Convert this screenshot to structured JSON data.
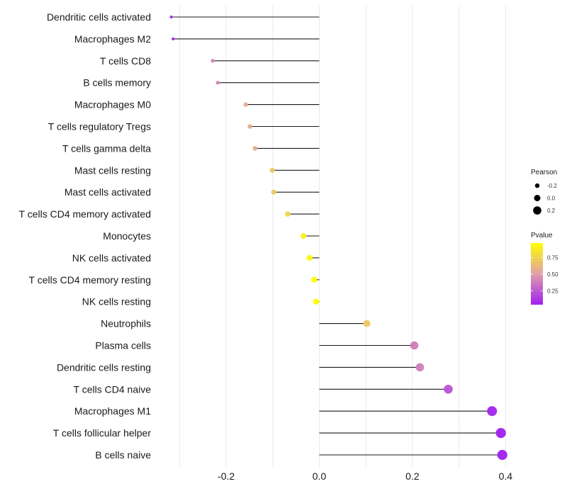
{
  "chart_data": {
    "type": "lollipop",
    "title": "",
    "xlabel": "",
    "ylabel": "",
    "xlim": [
      -0.33,
      0.41
    ],
    "x_ticks": [
      -0.2,
      0.0,
      0.2,
      0.4
    ],
    "x_tick_labels": [
      "-0.2",
      "0.0",
      "0.2",
      "0.4"
    ],
    "grid": true,
    "categories": [
      "Dendritic cells activated",
      "Macrophages M2",
      "T cells CD8",
      "B cells memory",
      "Macrophages M0",
      "T cells regulatory  Tregs ",
      "T cells gamma delta",
      "Mast cells resting",
      "Mast cells activated",
      "T cells CD4 memory activated",
      "Monocytes",
      "NK cells activated",
      "T cells CD4 memory resting",
      "NK cells resting",
      "Neutrophils",
      "Plasma cells",
      "Dendritic cells resting",
      "T cells CD4 naive",
      "Macrophages M1",
      "T cells follicular helper",
      "B cells naive"
    ],
    "pearson": [
      -0.318,
      -0.314,
      -0.229,
      -0.218,
      -0.158,
      -0.149,
      -0.138,
      -0.101,
      -0.098,
      -0.068,
      -0.034,
      -0.021,
      -0.011,
      -0.007,
      0.102,
      0.204,
      0.216,
      0.277,
      0.371,
      0.39,
      0.393
    ],
    "pvalue": [
      0.04,
      0.05,
      0.4,
      0.42,
      0.56,
      0.57,
      0.58,
      0.7,
      0.7,
      0.78,
      0.9,
      0.94,
      0.96,
      0.97,
      0.7,
      0.38,
      0.38,
      0.22,
      0.05,
      0.04,
      0.04
    ],
    "legend": {
      "position": "right",
      "size": {
        "title": "Pearson",
        "entries": [
          {
            "label": "-0.2",
            "value": -0.2
          },
          {
            "label": "0.0",
            "value": 0.0
          },
          {
            "label": "0.2",
            "value": 0.2
          }
        ]
      },
      "color": {
        "title": "Pvalue",
        "ticks": [
          {
            "label": "0.75",
            "value": 0.75
          },
          {
            "label": "0.50",
            "value": 0.5
          },
          {
            "label": "0.25",
            "value": 0.25
          }
        ],
        "range": [
          0.04,
          0.97
        ],
        "low_color": "#A020F0",
        "mid_color": "#E0A0A8",
        "high_color": "#FFFF00"
      }
    }
  }
}
